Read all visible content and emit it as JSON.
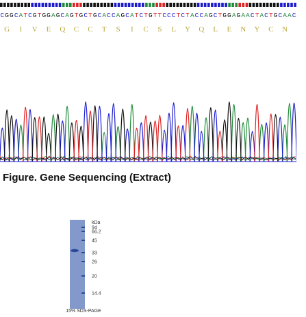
{
  "dna_sequence": "CGGCATCGTGGAGCAGTGCTGCACCAGCATCTGTTCCCTCTACCAGCTGGAGAACTACTGCAAC",
  "protein_sequence": [
    "G",
    "I",
    "V",
    "E",
    "Q",
    "C",
    "C",
    "T",
    "S",
    "I",
    "C",
    "S",
    "L",
    "Y",
    "Q",
    "L",
    "E",
    "N",
    "Y",
    "C",
    "N"
  ],
  "figure_caption": "Figure. Gene Sequencing (Extract)",
  "gel": {
    "unit_label": "kDa",
    "markers": [
      "94",
      "66.2",
      "45",
      "33",
      "26",
      "20",
      "14.4"
    ],
    "caption": "15% SDS-PAGE",
    "lane_color": "#8a9fce",
    "band_color": "#2c4a99"
  },
  "colors": {
    "A": "#1f8a3a",
    "C": "#1c1ccc",
    "G": "#111111",
    "T": "#dd2222",
    "protein_text": "#b8a83c"
  }
}
